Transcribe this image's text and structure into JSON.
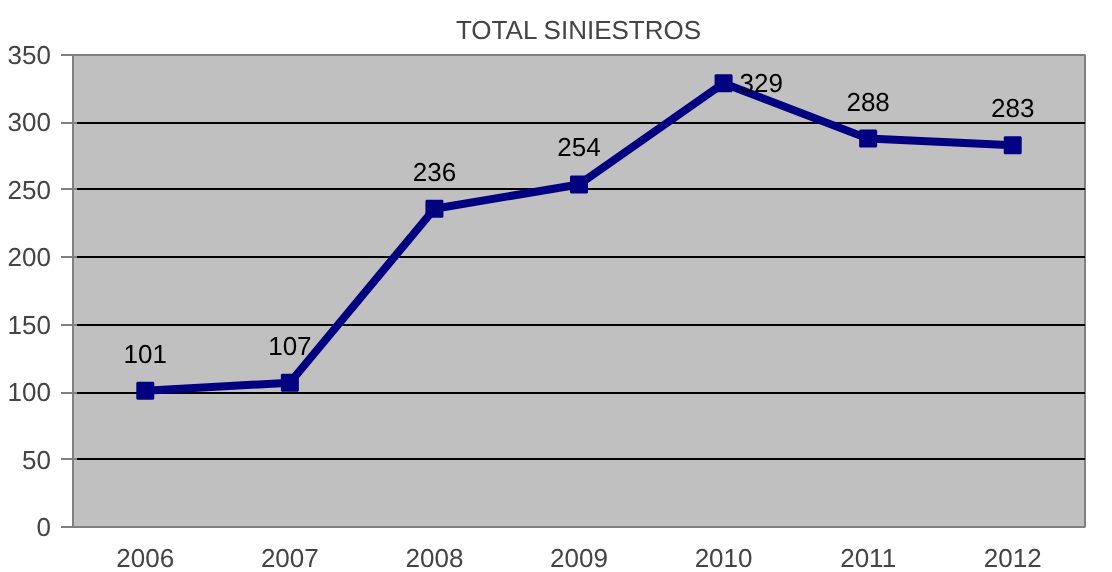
{
  "chart_data": {
    "type": "line",
    "title": "TOTAL SINIESTROS",
    "categories": [
      "2006",
      "2007",
      "2008",
      "2009",
      "2010",
      "2011",
      "2012"
    ],
    "values": [
      101,
      107,
      236,
      254,
      329,
      288,
      283
    ],
    "color": "#000080",
    "ylim": [
      0,
      350
    ],
    "yticks": [
      0,
      50,
      100,
      150,
      200,
      250,
      300,
      350
    ],
    "grid": "y",
    "marker": "square",
    "line_style": "solid",
    "data_labels": true
  }
}
